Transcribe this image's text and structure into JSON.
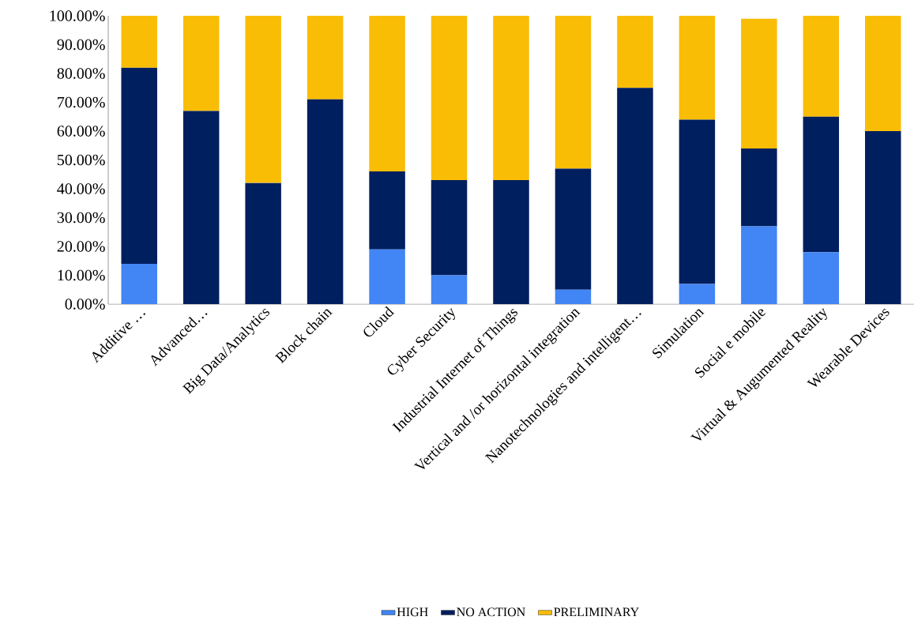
{
  "chart_data": {
    "type": "bar",
    "stacked": true,
    "categories": [
      "Additive …",
      "Advanced…",
      "Big Data/Analytics",
      "Block chain",
      "Cloud",
      "Cyber Security",
      "Industrial Internet of Things",
      "Vertical and /or horizontal integration",
      "Nanotechnologies and intelligent…",
      "Simulation",
      "Social e mobile",
      "Virtual & Augumented Reality",
      "Wearable Devices"
    ],
    "series": [
      {
        "name": "HIGH",
        "color": "#4285f4",
        "values": [
          14,
          0,
          0,
          0,
          19,
          10,
          0,
          5,
          0,
          7,
          27,
          18,
          0
        ]
      },
      {
        "name": "NO ACTION",
        "color": "#001f5f",
        "values": [
          68,
          67,
          42,
          71,
          27,
          33,
          43,
          42,
          75,
          57,
          27,
          47,
          60
        ]
      },
      {
        "name": "PRELIMINARY",
        "color": "#f9bd05",
        "values": [
          18,
          33,
          58,
          29,
          54,
          57,
          57,
          53,
          25,
          36,
          45,
          35,
          40
        ]
      }
    ],
    "ylim": [
      0,
      100
    ],
    "yticks": [
      {
        "value": 0,
        "label": "0.00%"
      },
      {
        "value": 10,
        "label": "10.00%"
      },
      {
        "value": 20,
        "label": "20.00%"
      },
      {
        "value": 30,
        "label": "30.00%"
      },
      {
        "value": 40,
        "label": "40.00%"
      },
      {
        "value": 50,
        "label": "50.00%"
      },
      {
        "value": 60,
        "label": "60.00%"
      },
      {
        "value": 70,
        "label": "70.00%"
      },
      {
        "value": 80,
        "label": "80.00%"
      },
      {
        "value": 90,
        "label": "90.00%"
      },
      {
        "value": 100,
        "label": "100.00%"
      }
    ],
    "legend": "bottom",
    "grid": false
  }
}
